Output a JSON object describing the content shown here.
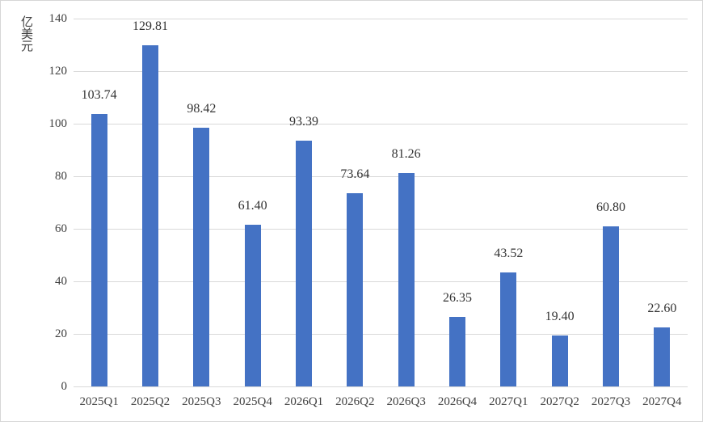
{
  "chart_data": {
    "type": "bar",
    "title": "",
    "xlabel": "",
    "ylabel": "亿美元",
    "categories": [
      "2025Q1",
      "2025Q2",
      "2025Q3",
      "2025Q4",
      "2026Q1",
      "2026Q2",
      "2026Q3",
      "2026Q4",
      "2027Q1",
      "2027Q2",
      "2027Q3",
      "2027Q4"
    ],
    "values": [
      103.74,
      129.81,
      98.42,
      61.4,
      93.39,
      73.64,
      81.26,
      26.35,
      43.52,
      19.4,
      60.8,
      22.6
    ],
    "data_labels": [
      "103.74",
      "129.81",
      "98.42",
      "61.40",
      "93.39",
      "73.64",
      "81.26",
      "26.35",
      "43.52",
      "19.40",
      "60.80",
      "22.60"
    ],
    "ylim": [
      0,
      140
    ],
    "yticks": [
      0,
      20,
      40,
      60,
      80,
      100,
      120,
      140
    ],
    "grid": true,
    "legend": false,
    "bar_color": "#4472C4",
    "gridline_color": "#D9D9D9",
    "axis_text_color": "#404040",
    "data_label_color": "#333333"
  }
}
